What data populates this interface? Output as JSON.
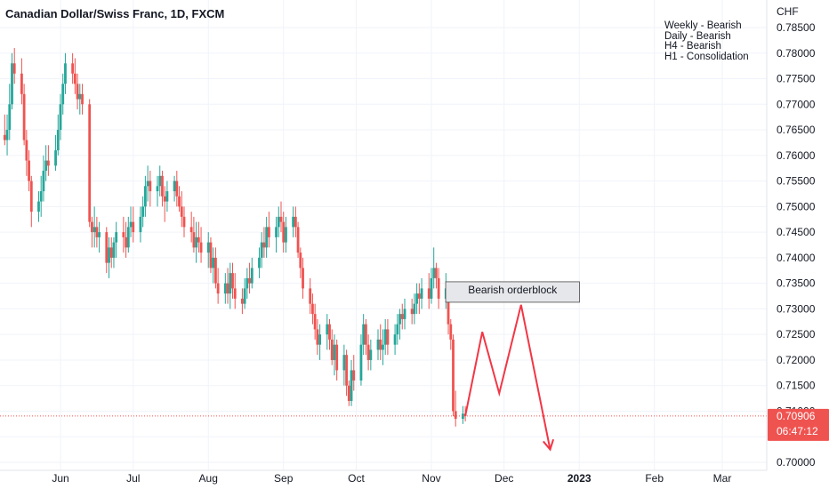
{
  "header": {
    "title": "Canadian Dollar/Swiss Franc, 1D, FXCM"
  },
  "notes": [
    "Weekly - Bearish",
    "Daily - Bearish",
    "H4 - Bearish",
    "H1 - Consolidation"
  ],
  "colors": {
    "up": "#26a69a",
    "down": "#ef5350",
    "projection": "#f23645",
    "last_price_line": "#ef5350",
    "zone_fill": "#e6e7ea",
    "zone_border": "#4a4a4a"
  },
  "chart_data": {
    "type": "candlestick",
    "currency_label": "CHF",
    "ylim": [
      0.6995,
      0.7865
    ],
    "y_ticks": [
      "0.78500",
      "0.78000",
      "0.77500",
      "0.77000",
      "0.76500",
      "0.76000",
      "0.75500",
      "0.75000",
      "0.74500",
      "0.74000",
      "0.73500",
      "0.73000",
      "0.72500",
      "0.72000",
      "0.71500",
      "0.71000",
      "0.70500",
      "0.70000"
    ],
    "x_ticks": [
      "Jun",
      "Jul",
      "Aug",
      "Sep",
      "Oct",
      "Nov",
      "Dec",
      "2023",
      "Feb",
      "Mar"
    ],
    "last_price": {
      "value": 0.70906,
      "label": "0.70906",
      "countdown": "06:47:12"
    },
    "bearish_orderblock": {
      "label": "Bearish orderblock",
      "price_top": 0.7353,
      "price_bottom": 0.7313,
      "from": "2022-11-08",
      "to": "2022-12-31"
    },
    "projection_path": [
      {
        "date": "2022-11-15",
        "price": 0.7091
      },
      {
        "date": "2022-11-22",
        "price": 0.7255
      },
      {
        "date": "2022-11-29",
        "price": 0.7135
      },
      {
        "date": "2022-12-08",
        "price": 0.7308
      },
      {
        "date": "2022-12-20",
        "price": 0.7025
      }
    ],
    "candles": [
      {
        "date": "2022-05-09",
        "o": 0.764,
        "h": 0.768,
        "l": 0.762,
        "c": 0.763
      },
      {
        "date": "2022-05-10",
        "o": 0.763,
        "h": 0.768,
        "l": 0.76,
        "c": 0.765
      },
      {
        "date": "2022-05-11",
        "o": 0.765,
        "h": 0.774,
        "l": 0.763,
        "c": 0.77
      },
      {
        "date": "2022-05-12",
        "o": 0.77,
        "h": 0.78,
        "l": 0.769,
        "c": 0.778
      },
      {
        "date": "2022-05-13",
        "o": 0.778,
        "h": 0.781,
        "l": 0.774,
        "c": 0.776
      },
      {
        "date": "2022-05-16",
        "o": 0.776,
        "h": 0.779,
        "l": 0.77,
        "c": 0.772
      },
      {
        "date": "2022-05-17",
        "o": 0.772,
        "h": 0.774,
        "l": 0.762,
        "c": 0.763
      },
      {
        "date": "2022-05-18",
        "o": 0.763,
        "h": 0.765,
        "l": 0.756,
        "c": 0.759
      },
      {
        "date": "2022-05-19",
        "o": 0.759,
        "h": 0.761,
        "l": 0.753,
        "c": 0.755
      },
      {
        "date": "2022-05-20",
        "o": 0.755,
        "h": 0.756,
        "l": 0.746,
        "c": 0.749
      },
      {
        "date": "2022-05-23",
        "o": 0.749,
        "h": 0.753,
        "l": 0.747,
        "c": 0.751
      },
      {
        "date": "2022-05-24",
        "o": 0.751,
        "h": 0.756,
        "l": 0.748,
        "c": 0.753
      },
      {
        "date": "2022-05-25",
        "o": 0.753,
        "h": 0.76,
        "l": 0.751,
        "c": 0.757
      },
      {
        "date": "2022-05-26",
        "o": 0.757,
        "h": 0.762,
        "l": 0.755,
        "c": 0.759
      },
      {
        "date": "2022-05-27",
        "o": 0.759,
        "h": 0.762,
        "l": 0.756,
        "c": 0.758
      },
      {
        "date": "2022-05-30",
        "o": 0.758,
        "h": 0.764,
        "l": 0.757,
        "c": 0.761
      },
      {
        "date": "2022-05-31",
        "o": 0.761,
        "h": 0.768,
        "l": 0.76,
        "c": 0.765
      },
      {
        "date": "2022-06-01",
        "o": 0.765,
        "h": 0.772,
        "l": 0.763,
        "c": 0.77
      },
      {
        "date": "2022-06-02",
        "o": 0.77,
        "h": 0.776,
        "l": 0.768,
        "c": 0.774
      },
      {
        "date": "2022-06-03",
        "o": 0.774,
        "h": 0.78,
        "l": 0.772,
        "c": 0.778
      },
      {
        "date": "2022-06-06",
        "o": 0.778,
        "h": 0.78,
        "l": 0.774,
        "c": 0.776
      },
      {
        "date": "2022-06-07",
        "o": 0.776,
        "h": 0.779,
        "l": 0.772,
        "c": 0.774
      },
      {
        "date": "2022-06-08",
        "o": 0.774,
        "h": 0.776,
        "l": 0.769,
        "c": 0.771
      },
      {
        "date": "2022-06-09",
        "o": 0.771,
        "h": 0.774,
        "l": 0.768,
        "c": 0.772
      },
      {
        "date": "2022-06-10",
        "o": 0.772,
        "h": 0.774,
        "l": 0.768,
        "c": 0.77
      },
      {
        "date": "2022-06-13",
        "o": 0.77,
        "h": 0.771,
        "l": 0.746,
        "c": 0.747
      },
      {
        "date": "2022-06-14",
        "o": 0.747,
        "h": 0.748,
        "l": 0.742,
        "c": 0.745
      },
      {
        "date": "2022-06-15",
        "o": 0.745,
        "h": 0.75,
        "l": 0.742,
        "c": 0.746
      },
      {
        "date": "2022-06-16",
        "o": 0.746,
        "h": 0.748,
        "l": 0.742,
        "c": 0.744
      },
      {
        "date": "2022-06-17",
        "o": 0.744,
        "h": 0.747,
        "l": 0.741,
        "c": 0.745
      },
      {
        "date": "2022-06-20",
        "o": 0.745,
        "h": 0.746,
        "l": 0.737,
        "c": 0.739
      },
      {
        "date": "2022-06-21",
        "o": 0.739,
        "h": 0.744,
        "l": 0.736,
        "c": 0.742
      },
      {
        "date": "2022-06-22",
        "o": 0.742,
        "h": 0.744,
        "l": 0.738,
        "c": 0.74
      },
      {
        "date": "2022-06-23",
        "o": 0.74,
        "h": 0.744,
        "l": 0.738,
        "c": 0.743
      },
      {
        "date": "2022-06-24",
        "o": 0.743,
        "h": 0.747,
        "l": 0.74,
        "c": 0.745
      },
      {
        "date": "2022-06-27",
        "o": 0.745,
        "h": 0.748,
        "l": 0.741,
        "c": 0.744
      },
      {
        "date": "2022-06-28",
        "o": 0.744,
        "h": 0.747,
        "l": 0.74,
        "c": 0.742
      },
      {
        "date": "2022-06-29",
        "o": 0.742,
        "h": 0.748,
        "l": 0.741,
        "c": 0.746
      },
      {
        "date": "2022-06-30",
        "o": 0.746,
        "h": 0.75,
        "l": 0.744,
        "c": 0.747
      },
      {
        "date": "2022-07-01",
        "o": 0.747,
        "h": 0.75,
        "l": 0.743,
        "c": 0.745
      },
      {
        "date": "2022-07-04",
        "o": 0.745,
        "h": 0.75,
        "l": 0.743,
        "c": 0.748
      },
      {
        "date": "2022-07-05",
        "o": 0.748,
        "h": 0.752,
        "l": 0.746,
        "c": 0.75
      },
      {
        "date": "2022-07-06",
        "o": 0.75,
        "h": 0.756,
        "l": 0.748,
        "c": 0.754
      },
      {
        "date": "2022-07-07",
        "o": 0.754,
        "h": 0.758,
        "l": 0.751,
        "c": 0.755
      },
      {
        "date": "2022-07-08",
        "o": 0.755,
        "h": 0.757,
        "l": 0.75,
        "c": 0.753
      },
      {
        "date": "2022-07-11",
        "o": 0.753,
        "h": 0.756,
        "l": 0.75,
        "c": 0.754
      },
      {
        "date": "2022-07-12",
        "o": 0.754,
        "h": 0.758,
        "l": 0.752,
        "c": 0.756
      },
      {
        "date": "2022-07-13",
        "o": 0.756,
        "h": 0.757,
        "l": 0.75,
        "c": 0.752
      },
      {
        "date": "2022-07-14",
        "o": 0.752,
        "h": 0.754,
        "l": 0.747,
        "c": 0.751
      },
      {
        "date": "2022-07-15",
        "o": 0.751,
        "h": 0.755,
        "l": 0.749,
        "c": 0.753
      },
      {
        "date": "2022-07-18",
        "o": 0.753,
        "h": 0.756,
        "l": 0.751,
        "c": 0.755
      },
      {
        "date": "2022-07-19",
        "o": 0.755,
        "h": 0.757,
        "l": 0.75,
        "c": 0.752
      },
      {
        "date": "2022-07-20",
        "o": 0.752,
        "h": 0.754,
        "l": 0.749,
        "c": 0.75
      },
      {
        "date": "2022-07-21",
        "o": 0.75,
        "h": 0.753,
        "l": 0.746,
        "c": 0.748
      },
      {
        "date": "2022-07-22",
        "o": 0.748,
        "h": 0.75,
        "l": 0.744,
        "c": 0.746
      },
      {
        "date": "2022-07-25",
        "o": 0.746,
        "h": 0.749,
        "l": 0.743,
        "c": 0.745
      },
      {
        "date": "2022-07-26",
        "o": 0.745,
        "h": 0.748,
        "l": 0.741,
        "c": 0.742
      },
      {
        "date": "2022-07-27",
        "o": 0.742,
        "h": 0.747,
        "l": 0.739,
        "c": 0.744
      },
      {
        "date": "2022-07-28",
        "o": 0.744,
        "h": 0.747,
        "l": 0.741,
        "c": 0.743
      },
      {
        "date": "2022-07-29",
        "o": 0.743,
        "h": 0.746,
        "l": 0.739,
        "c": 0.741
      },
      {
        "date": "2022-08-01",
        "o": 0.741,
        "h": 0.745,
        "l": 0.738,
        "c": 0.743
      },
      {
        "date": "2022-08-02",
        "o": 0.743,
        "h": 0.744,
        "l": 0.737,
        "c": 0.738
      },
      {
        "date": "2022-08-03",
        "o": 0.738,
        "h": 0.742,
        "l": 0.735,
        "c": 0.74
      },
      {
        "date": "2022-08-04",
        "o": 0.74,
        "h": 0.742,
        "l": 0.734,
        "c": 0.735
      },
      {
        "date": "2022-08-05",
        "o": 0.735,
        "h": 0.738,
        "l": 0.731,
        "c": 0.733
      },
      {
        "date": "2022-08-08",
        "o": 0.733,
        "h": 0.737,
        "l": 0.731,
        "c": 0.735
      },
      {
        "date": "2022-08-09",
        "o": 0.735,
        "h": 0.738,
        "l": 0.731,
        "c": 0.733
      },
      {
        "date": "2022-08-10",
        "o": 0.733,
        "h": 0.739,
        "l": 0.73,
        "c": 0.737
      },
      {
        "date": "2022-08-11",
        "o": 0.737,
        "h": 0.739,
        "l": 0.732,
        "c": 0.734
      },
      {
        "date": "2022-08-12",
        "o": 0.734,
        "h": 0.737,
        "l": 0.73,
        "c": 0.732
      },
      {
        "date": "2022-08-15",
        "o": 0.732,
        "h": 0.734,
        "l": 0.729,
        "c": 0.731
      },
      {
        "date": "2022-08-16",
        "o": 0.731,
        "h": 0.736,
        "l": 0.73,
        "c": 0.734
      },
      {
        "date": "2022-08-17",
        "o": 0.734,
        "h": 0.738,
        "l": 0.732,
        "c": 0.736
      },
      {
        "date": "2022-08-18",
        "o": 0.736,
        "h": 0.739,
        "l": 0.733,
        "c": 0.735
      },
      {
        "date": "2022-08-19",
        "o": 0.735,
        "h": 0.74,
        "l": 0.734,
        "c": 0.738
      },
      {
        "date": "2022-08-22",
        "o": 0.738,
        "h": 0.742,
        "l": 0.736,
        "c": 0.74
      },
      {
        "date": "2022-08-23",
        "o": 0.74,
        "h": 0.745,
        "l": 0.738,
        "c": 0.743
      },
      {
        "date": "2022-08-24",
        "o": 0.743,
        "h": 0.746,
        "l": 0.74,
        "c": 0.742
      },
      {
        "date": "2022-08-25",
        "o": 0.742,
        "h": 0.748,
        "l": 0.74,
        "c": 0.746
      },
      {
        "date": "2022-08-26",
        "o": 0.746,
        "h": 0.749,
        "l": 0.742,
        "c": 0.744
      },
      {
        "date": "2022-08-29",
        "o": 0.744,
        "h": 0.748,
        "l": 0.741,
        "c": 0.746
      },
      {
        "date": "2022-08-30",
        "o": 0.746,
        "h": 0.75,
        "l": 0.744,
        "c": 0.748
      },
      {
        "date": "2022-08-31",
        "o": 0.748,
        "h": 0.751,
        "l": 0.745,
        "c": 0.747
      },
      {
        "date": "2022-09-01",
        "o": 0.747,
        "h": 0.749,
        "l": 0.741,
        "c": 0.743
      },
      {
        "date": "2022-09-02",
        "o": 0.743,
        "h": 0.748,
        "l": 0.741,
        "c": 0.746
      },
      {
        "date": "2022-09-05",
        "o": 0.746,
        "h": 0.75,
        "l": 0.744,
        "c": 0.748
      },
      {
        "date": "2022-09-06",
        "o": 0.748,
        "h": 0.75,
        "l": 0.744,
        "c": 0.746
      },
      {
        "date": "2022-09-07",
        "o": 0.746,
        "h": 0.747,
        "l": 0.74,
        "c": 0.741
      },
      {
        "date": "2022-09-08",
        "o": 0.741,
        "h": 0.742,
        "l": 0.736,
        "c": 0.738
      },
      {
        "date": "2022-09-09",
        "o": 0.738,
        "h": 0.74,
        "l": 0.732,
        "c": 0.734
      },
      {
        "date": "2022-09-12",
        "o": 0.734,
        "h": 0.736,
        "l": 0.729,
        "c": 0.731
      },
      {
        "date": "2022-09-13",
        "o": 0.731,
        "h": 0.733,
        "l": 0.727,
        "c": 0.729
      },
      {
        "date": "2022-09-14",
        "o": 0.729,
        "h": 0.731,
        "l": 0.724,
        "c": 0.726
      },
      {
        "date": "2022-09-15",
        "o": 0.726,
        "h": 0.728,
        "l": 0.721,
        "c": 0.723
      },
      {
        "date": "2022-09-16",
        "o": 0.723,
        "h": 0.727,
        "l": 0.72,
        "c": 0.725
      },
      {
        "date": "2022-09-19",
        "o": 0.725,
        "h": 0.729,
        "l": 0.722,
        "c": 0.727
      },
      {
        "date": "2022-09-20",
        "o": 0.727,
        "h": 0.728,
        "l": 0.722,
        "c": 0.724
      },
      {
        "date": "2022-09-21",
        "o": 0.724,
        "h": 0.726,
        "l": 0.719,
        "c": 0.72
      },
      {
        "date": "2022-09-22",
        "o": 0.72,
        "h": 0.725,
        "l": 0.717,
        "c": 0.723
      },
      {
        "date": "2022-09-23",
        "o": 0.723,
        "h": 0.724,
        "l": 0.716,
        "c": 0.718
      },
      {
        "date": "2022-09-26",
        "o": 0.718,
        "h": 0.723,
        "l": 0.715,
        "c": 0.721
      },
      {
        "date": "2022-09-27",
        "o": 0.721,
        "h": 0.722,
        "l": 0.713,
        "c": 0.715
      },
      {
        "date": "2022-09-28",
        "o": 0.715,
        "h": 0.716,
        "l": 0.711,
        "c": 0.712
      },
      {
        "date": "2022-09-29",
        "o": 0.712,
        "h": 0.72,
        "l": 0.711,
        "c": 0.718
      },
      {
        "date": "2022-09-30",
        "o": 0.718,
        "h": 0.721,
        "l": 0.714,
        "c": 0.716
      },
      {
        "date": "2022-10-03",
        "o": 0.716,
        "h": 0.725,
        "l": 0.715,
        "c": 0.723
      },
      {
        "date": "2022-10-04",
        "o": 0.723,
        "h": 0.729,
        "l": 0.721,
        "c": 0.727
      },
      {
        "date": "2022-10-05",
        "o": 0.727,
        "h": 0.728,
        "l": 0.721,
        "c": 0.723
      },
      {
        "date": "2022-10-06",
        "o": 0.723,
        "h": 0.725,
        "l": 0.718,
        "c": 0.72
      },
      {
        "date": "2022-10-07",
        "o": 0.72,
        "h": 0.724,
        "l": 0.718,
        "c": 0.722
      },
      {
        "date": "2022-10-10",
        "o": 0.722,
        "h": 0.726,
        "l": 0.72,
        "c": 0.724
      },
      {
        "date": "2022-10-11",
        "o": 0.724,
        "h": 0.727,
        "l": 0.72,
        "c": 0.722
      },
      {
        "date": "2022-10-12",
        "o": 0.722,
        "h": 0.726,
        "l": 0.719,
        "c": 0.723
      },
      {
        "date": "2022-10-13",
        "o": 0.723,
        "h": 0.728,
        "l": 0.721,
        "c": 0.726
      },
      {
        "date": "2022-10-14",
        "o": 0.726,
        "h": 0.728,
        "l": 0.721,
        "c": 0.723
      },
      {
        "date": "2022-10-17",
        "o": 0.723,
        "h": 0.727,
        "l": 0.721,
        "c": 0.725
      },
      {
        "date": "2022-10-18",
        "o": 0.725,
        "h": 0.729,
        "l": 0.723,
        "c": 0.727
      },
      {
        "date": "2022-10-19",
        "o": 0.727,
        "h": 0.73,
        "l": 0.724,
        "c": 0.729
      },
      {
        "date": "2022-10-20",
        "o": 0.729,
        "h": 0.731,
        "l": 0.726,
        "c": 0.728
      },
      {
        "date": "2022-10-21",
        "o": 0.728,
        "h": 0.732,
        "l": 0.726,
        "c": 0.73
      },
      {
        "date": "2022-10-24",
        "o": 0.73,
        "h": 0.732,
        "l": 0.727,
        "c": 0.729
      },
      {
        "date": "2022-10-25",
        "o": 0.729,
        "h": 0.733,
        "l": 0.727,
        "c": 0.731
      },
      {
        "date": "2022-10-26",
        "o": 0.731,
        "h": 0.735,
        "l": 0.729,
        "c": 0.733
      },
      {
        "date": "2022-10-27",
        "o": 0.733,
        "h": 0.735,
        "l": 0.729,
        "c": 0.732
      },
      {
        "date": "2022-10-28",
        "o": 0.732,
        "h": 0.736,
        "l": 0.73,
        "c": 0.734
      },
      {
        "date": "2022-10-31",
        "o": 0.734,
        "h": 0.737,
        "l": 0.73,
        "c": 0.732
      },
      {
        "date": "2022-11-01",
        "o": 0.732,
        "h": 0.738,
        "l": 0.731,
        "c": 0.736
      },
      {
        "date": "2022-11-02",
        "o": 0.736,
        "h": 0.742,
        "l": 0.734,
        "c": 0.738
      },
      {
        "date": "2022-11-03",
        "o": 0.738,
        "h": 0.739,
        "l": 0.734,
        "c": 0.736
      },
      {
        "date": "2022-11-04",
        "o": 0.736,
        "h": 0.738,
        "l": 0.73,
        "c": 0.732
      },
      {
        "date": "2022-11-07",
        "o": 0.732,
        "h": 0.737,
        "l": 0.73,
        "c": 0.734
      },
      {
        "date": "2022-11-08",
        "o": 0.734,
        "h": 0.735,
        "l": 0.725,
        "c": 0.727
      },
      {
        "date": "2022-11-09",
        "o": 0.727,
        "h": 0.728,
        "l": 0.722,
        "c": 0.724
      },
      {
        "date": "2022-11-10",
        "o": 0.724,
        "h": 0.725,
        "l": 0.709,
        "c": 0.71
      },
      {
        "date": "2022-11-11",
        "o": 0.71,
        "h": 0.714,
        "l": 0.707,
        "c": 0.7085
      },
      {
        "date": "2022-11-14",
        "o": 0.7085,
        "h": 0.711,
        "l": 0.7075,
        "c": 0.7095
      },
      {
        "date": "2022-11-15",
        "o": 0.7095,
        "h": 0.711,
        "l": 0.708,
        "c": 0.7091
      }
    ]
  }
}
